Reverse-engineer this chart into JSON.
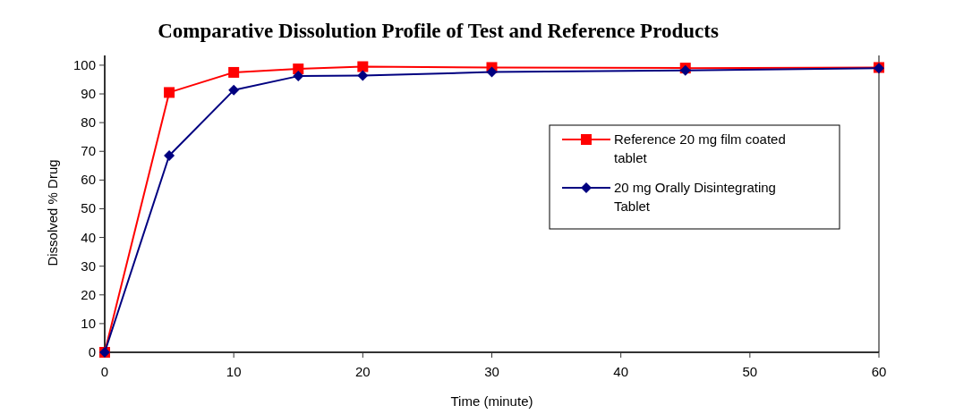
{
  "chart_data": {
    "type": "line",
    "title": "Comparative Dissolution Profile of Test and Reference Products",
    "xlabel": "Time (minute)",
    "ylabel": "Dissolved % Drug",
    "x": [
      0,
      5,
      10,
      15,
      20,
      30,
      45,
      60
    ],
    "series": [
      {
        "name": "Reference 20 mg film coated tablet",
        "color": "#ff0000",
        "marker": "square",
        "values": [
          0,
          90.5,
          97.5,
          98.7,
          99.5,
          99.2,
          99.0,
          99.2
        ]
      },
      {
        "name": "20 mg Orally Disintegrating Tablet",
        "color": "#000080",
        "marker": "diamond",
        "values": [
          0,
          68.5,
          91.3,
          96.2,
          96.4,
          97.6,
          98.2,
          99.0
        ]
      }
    ],
    "xlim": [
      0,
      60
    ],
    "xticks": [
      0,
      10,
      20,
      30,
      40,
      50,
      60
    ],
    "ylim": [
      0,
      103.4
    ],
    "yticks": [
      0,
      10,
      20,
      30,
      40,
      50,
      60,
      70,
      80,
      90,
      100
    ],
    "grid": false,
    "legend": "right",
    "line_style": "solid"
  }
}
